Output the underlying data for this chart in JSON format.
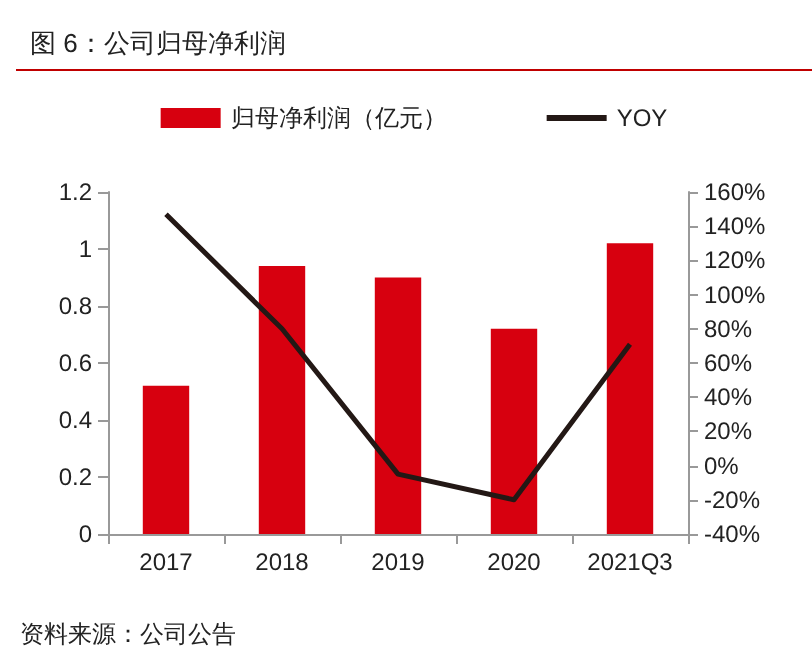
{
  "chart_data": {
    "type": "bar",
    "title": "图 6：公司归母净利润",
    "categories": [
      "2017",
      "2018",
      "2019",
      "2020",
      "2021Q3"
    ],
    "series": [
      {
        "name": "归母净利润（亿元）",
        "color": "#d7000f",
        "values": [
          0.52,
          0.94,
          0.9,
          0.72,
          1.02
        ]
      },
      {
        "name": "YOY",
        "type": "line",
        "axis": "y2",
        "color": "#231815",
        "marker": "none",
        "values": [
          147,
          80,
          -5,
          -20,
          71
        ]
      }
    ],
    "ylim": [
      0,
      1.2
    ],
    "yticks": [
      0,
      0.2,
      0.4,
      0.6,
      0.8,
      1,
      1.2
    ],
    "y2lim": [
      -40,
      160
    ],
    "y2ticks": [
      {
        "value": -40,
        "label": "-40%"
      },
      {
        "value": -20,
        "label": "-20%"
      },
      {
        "value": 0,
        "label": "0%"
      },
      {
        "value": 20,
        "label": "20%"
      },
      {
        "value": 40,
        "label": "40%"
      },
      {
        "value": 60,
        "label": "60%"
      },
      {
        "value": 80,
        "label": "80%"
      },
      {
        "value": 100,
        "label": "100%"
      },
      {
        "value": 120,
        "label": "120%"
      },
      {
        "value": 140,
        "label": "140%"
      },
      {
        "value": 160,
        "label": "160%"
      }
    ],
    "grid": false,
    "legend": "top",
    "annotations": [
      "资料来源：公司公告"
    ]
  }
}
